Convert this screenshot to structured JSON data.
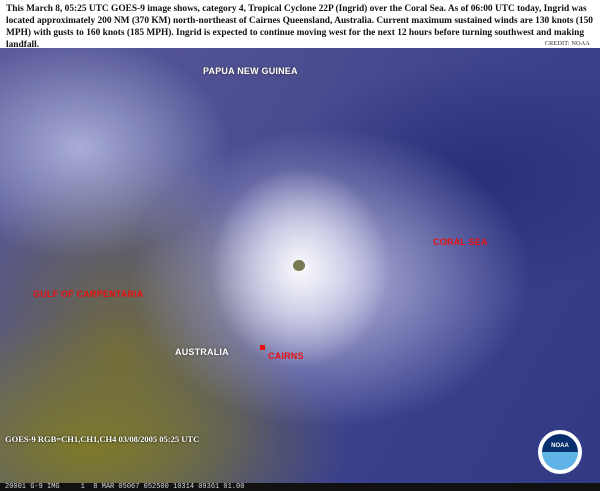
{
  "caption": "This March 8, 05:25 UTC GOES-9 image shows, category 4, Tropical Cyclone 22P (Ingrid) over the Coral Sea.  As of 06:00 UTC today, Ingrid was located approximately 200 NM (370 KM) north-northeast of Cairnes Queensland, Australia.  Current maximum sustained winds are 130 knots (150 MPH) with gusts to 160 knots (185 MPH).  Ingrid is expected to continue moving west for the next 12 hours before turning southwest and making landfall.",
  "credit": "CREDIT: NOAA",
  "labels": {
    "papua": "PAPUA NEW GUINEA",
    "coral_sea": "CORAL SEA",
    "gulf": "GULF OF CARPENTARIA",
    "australia": "AUSTRALIA",
    "cairns": "CAIRNS"
  },
  "image_info": "GOES-9 RGB=CH1,CH1,CH4 03/08/2005  05:25 UTC",
  "data_strip": "20001 G-9 IMG     1  8 MAR 05067 052500 10314 09361 01.00",
  "logo": "NOAA",
  "colors": {
    "label_red": "#e81010",
    "label_white": "#ffffff"
  }
}
